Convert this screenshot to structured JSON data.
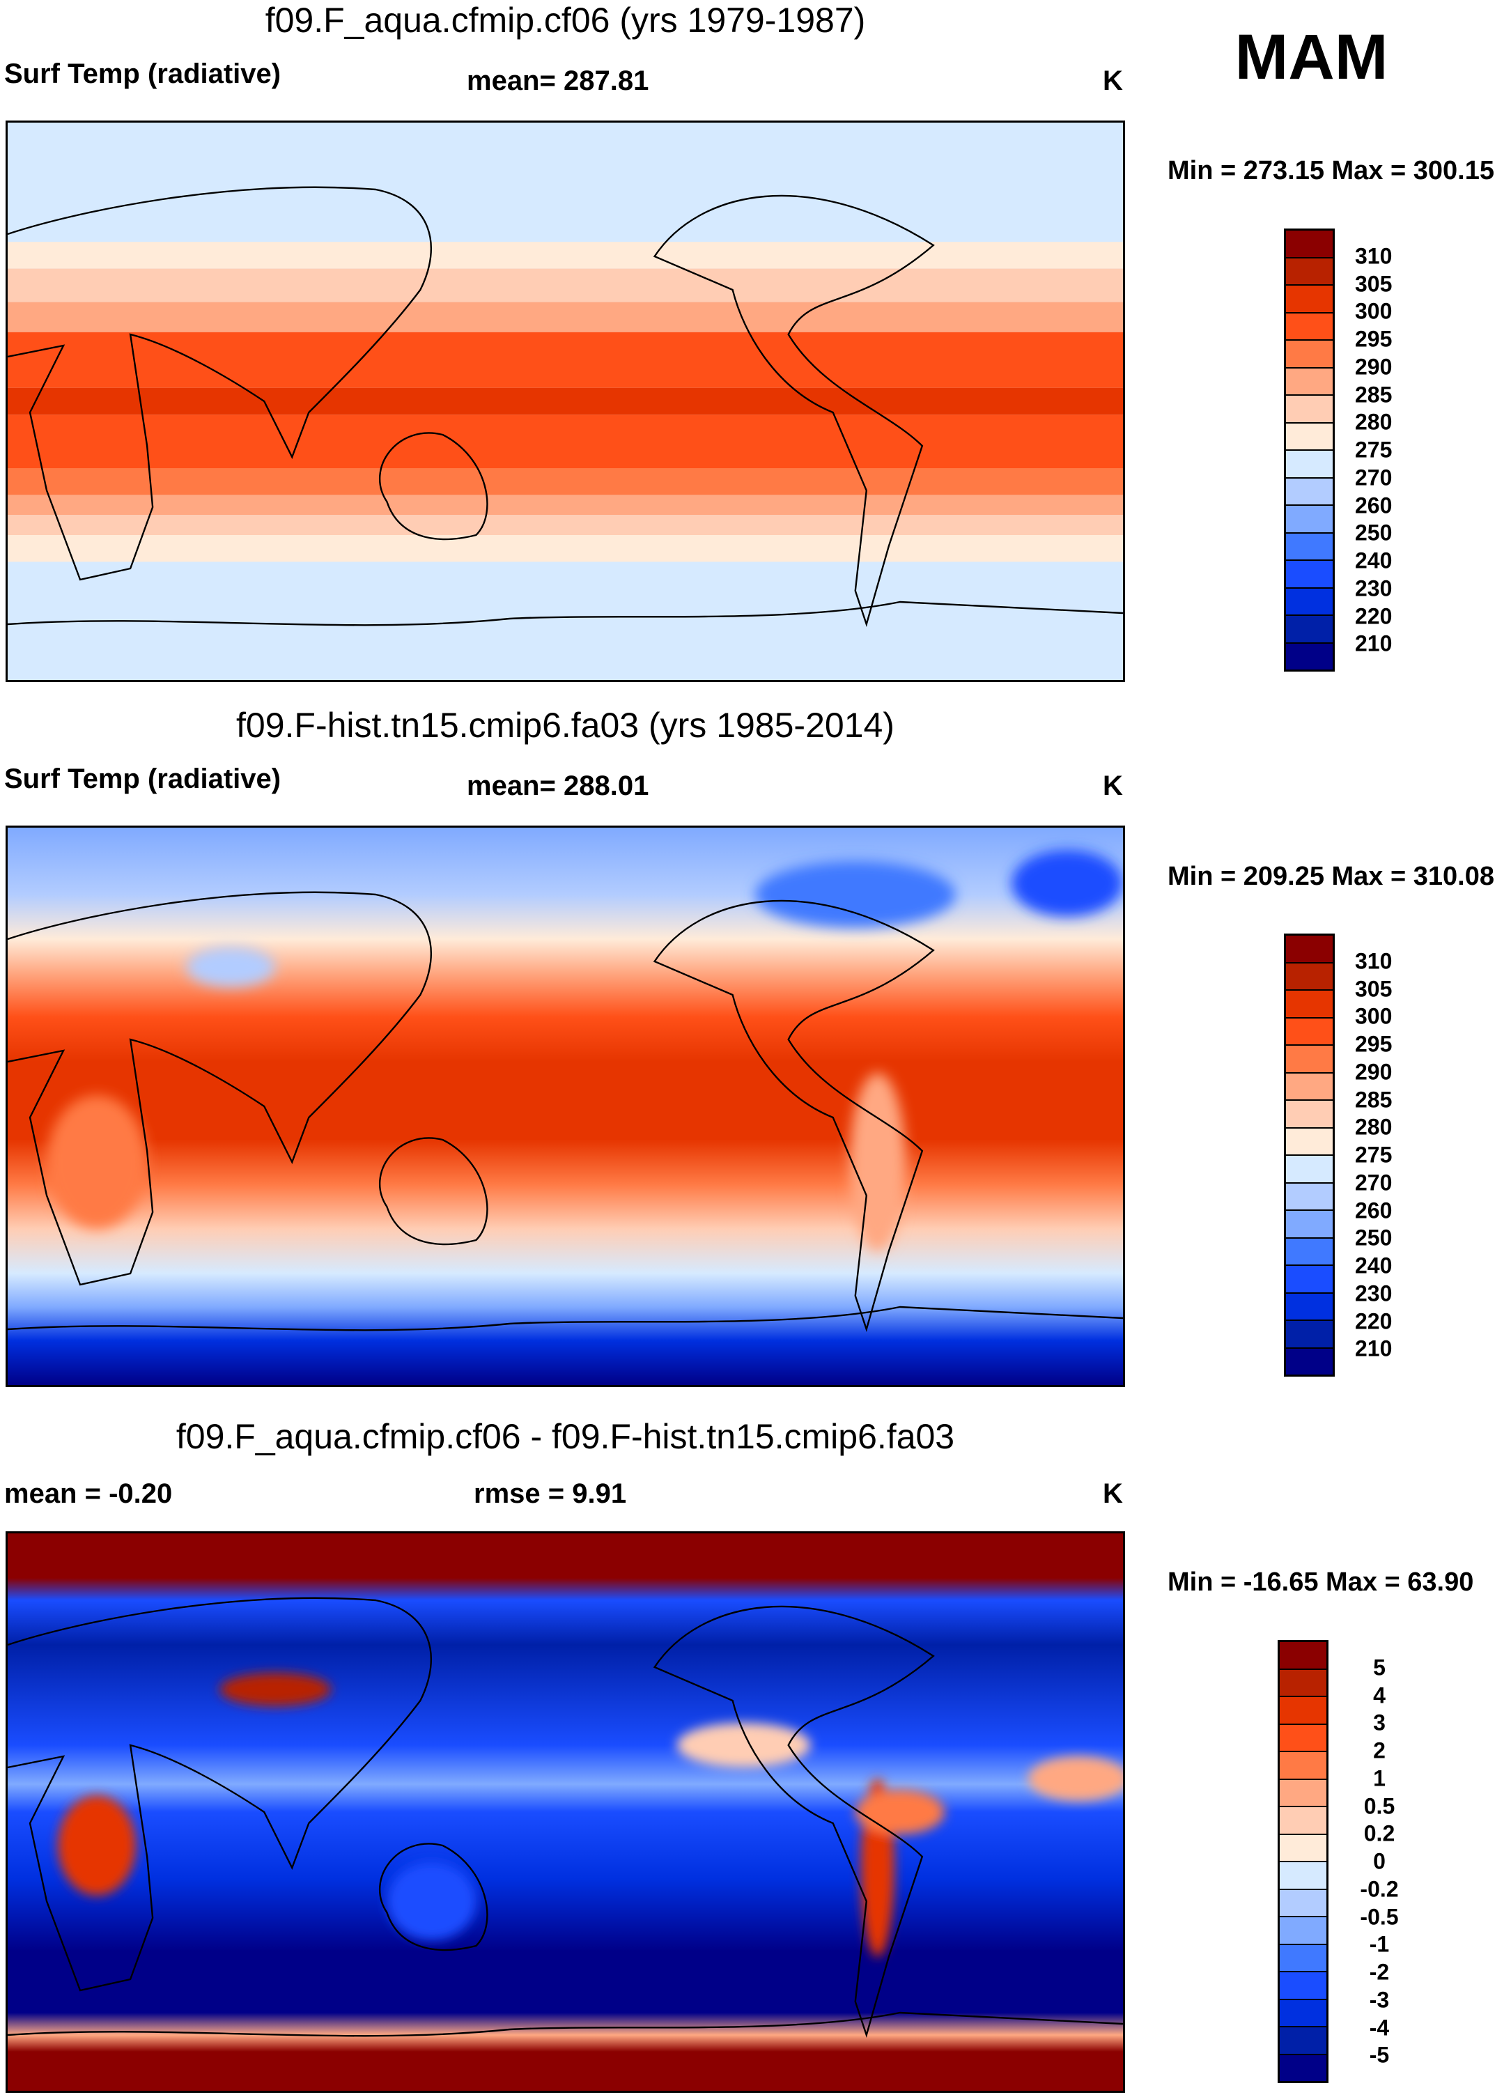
{
  "season": "MAM",
  "colors": [
    "#8b0000",
    "#b82200",
    "#e63500",
    "#ff5018",
    "#ff7a45",
    "#ffa882",
    "#ffcdb4",
    "#ffebd9",
    "#d6eaff",
    "#b2ccff",
    "#80aaff",
    "#4079ff",
    "#1a4dff",
    "#0030e0",
    "#0020a8",
    "#000088"
  ],
  "chart_data": [
    {
      "type": "heatmap",
      "title": "f09.F_aqua.cfmip.cf06 (yrs 1979-1987)",
      "left_label": "Surf Temp (radiative)",
      "center_label": "mean= 287.81",
      "units": "K",
      "minmax": "Min = 273.15 Max = 300.15",
      "mean": 287.81,
      "min": 273.15,
      "max": 300.15,
      "colorbar_levels": [
        "310",
        "305",
        "300",
        "295",
        "290",
        "285",
        "280",
        "275",
        "270",
        "260",
        "250",
        "240",
        "230",
        "220",
        "210"
      ]
    },
    {
      "type": "heatmap",
      "title": "f09.F-hist.tn15.cmip6.fa03 (yrs 1985-2014)",
      "left_label": "Surf Temp (radiative)",
      "center_label": "mean= 288.01",
      "units": "K",
      "minmax": "Min = 209.25 Max = 310.08",
      "mean": 288.01,
      "min": 209.25,
      "max": 310.08,
      "colorbar_levels": [
        "310",
        "305",
        "300",
        "295",
        "290",
        "285",
        "280",
        "275",
        "270",
        "260",
        "250",
        "240",
        "230",
        "220",
        "210"
      ]
    },
    {
      "type": "heatmap",
      "title": "f09.F_aqua.cfmip.cf06 - f09.F-hist.tn15.cmip6.fa03",
      "left_label": "mean =  -0.20",
      "center_label": "rmse =   9.91",
      "units": "K",
      "minmax": "Min = -16.65 Max =  63.90",
      "mean": -0.2,
      "rmse": 9.91,
      "min": -16.65,
      "max": 63.9,
      "colorbar_levels": [
        "5",
        "4",
        "3",
        "2",
        "1",
        "0.5",
        "0.2",
        "0",
        "-0.2",
        "-0.5",
        "-1",
        "-2",
        "-3",
        "-4",
        "-5"
      ]
    }
  ]
}
